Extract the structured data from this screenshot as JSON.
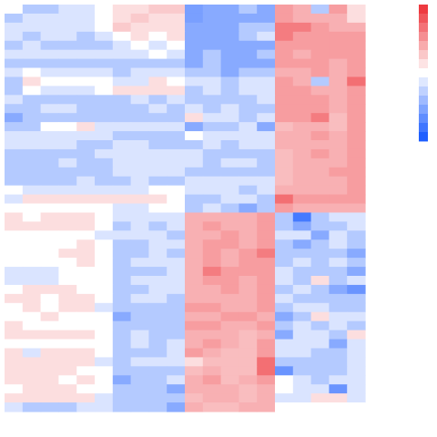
{
  "chart_data": {
    "type": "heatmap",
    "title": "",
    "xlabel": "",
    "ylabel": "",
    "legend": {
      "position": "right",
      "labels": []
    },
    "color_scale": {
      "min": -3,
      "max": 3,
      "negative": "#1f5fff",
      "neutral": "#ffffff",
      "positive": "#ee3a40",
      "steps": 15
    },
    "columns": 20,
    "row_count": 45,
    "rows": [
      [
        0.0,
        -1.0,
        -1.0,
        -0.5,
        -0.5,
        0.0,
        0.5,
        0.5,
        0.8,
        0.8,
        -1.8,
        -1.6,
        -1.6,
        -1.0,
        -1.6,
        1.5,
        1.2,
        -1.0,
        1.5,
        0.5
      ],
      [
        -1.0,
        -0.5,
        -0.5,
        -0.5,
        -0.5,
        0.0,
        0.5,
        0.8,
        0.5,
        0.5,
        -1.8,
        -1.6,
        -1.6,
        -1.6,
        -1.6,
        1.5,
        1.2,
        1.2,
        1.2,
        0.5
      ],
      [
        -0.5,
        -0.5,
        -0.5,
        -0.5,
        -0.5,
        0.0,
        0.8,
        0.5,
        0.5,
        0.5,
        -1.6,
        -1.6,
        -1.6,
        -1.0,
        -1.0,
        2.0,
        2.0,
        1.5,
        1.2,
        1.2
      ],
      [
        -0.5,
        -1.0,
        -0.5,
        -0.5,
        -1.0,
        -0.5,
        0.0,
        0.5,
        0.0,
        0.5,
        -1.6,
        -1.6,
        -1.6,
        -1.0,
        -0.5,
        2.0,
        1.5,
        1.5,
        1.5,
        1.5
      ],
      [
        -1.0,
        -0.5,
        -1.0,
        -1.0,
        -1.0,
        -1.0,
        -0.5,
        0.0,
        -0.5,
        0.0,
        -1.6,
        -1.6,
        -1.6,
        -1.6,
        -1.6,
        1.5,
        1.5,
        1.5,
        1.5,
        1.5
      ],
      [
        -0.5,
        -0.5,
        -0.5,
        -0.5,
        -0.5,
        -0.5,
        -0.5,
        -0.5,
        0.0,
        -0.5,
        -1.6,
        -1.0,
        -1.6,
        -1.6,
        -1.0,
        1.5,
        1.2,
        1.5,
        1.5,
        1.5
      ],
      [
        -1.0,
        -1.0,
        -1.0,
        -1.0,
        -1.0,
        -1.0,
        -1.0,
        -1.0,
        -1.0,
        -1.0,
        -1.6,
        -1.0,
        -1.6,
        -1.6,
        -1.6,
        1.5,
        1.5,
        1.5,
        1.2,
        1.5
      ],
      [
        -0.5,
        0.0,
        -0.5,
        -0.5,
        -0.5,
        -0.5,
        -1.0,
        -0.5,
        -0.5,
        -0.5,
        -1.0,
        -1.0,
        -1.6,
        -1.0,
        -1.0,
        1.2,
        1.2,
        1.5,
        1.2,
        1.5
      ],
      [
        -1.0,
        0.5,
        0.0,
        0.0,
        0.0,
        0.0,
        -0.5,
        -0.5,
        0.5,
        0.0,
        -0.5,
        -0.5,
        -1.0,
        -0.5,
        -0.5,
        1.5,
        1.2,
        -1.0,
        1.2,
        2.2
      ],
      [
        -1.0,
        0.0,
        -0.5,
        -0.5,
        -0.5,
        0.0,
        0.5,
        0.5,
        0.5,
        0.5,
        -1.0,
        -0.5,
        -1.0,
        -0.5,
        -0.5,
        1.5,
        1.5,
        1.2,
        1.2,
        1.5
      ],
      [
        -0.5,
        -1.0,
        -1.0,
        -1.0,
        -1.0,
        -1.0,
        -1.0,
        -0.5,
        -1.0,
        -0.5,
        -1.0,
        -1.0,
        -1.0,
        -1.0,
        -0.5,
        1.5,
        1.5,
        1.5,
        1.2,
        1.5
      ],
      [
        -1.0,
        -1.0,
        -0.5,
        -0.5,
        -1.0,
        -1.0,
        -1.0,
        -1.0,
        -0.5,
        -1.0,
        -0.5,
        -1.0,
        -0.5,
        -1.0,
        -1.0,
        1.5,
        1.5,
        1.5,
        1.2,
        1.5
      ],
      [
        -1.6,
        -1.0,
        -1.0,
        -1.0,
        -1.0,
        -1.0,
        -1.0,
        -1.0,
        -1.0,
        -1.0,
        0.5,
        -0.5,
        -0.5,
        -1.0,
        -0.5,
        1.5,
        1.5,
        2.0,
        1.0,
        1.5
      ],
      [
        -1.0,
        -1.0,
        0.0,
        0.0,
        0.5,
        -0.5,
        -0.5,
        -0.5,
        -0.5,
        -0.5,
        -1.6,
        -1.0,
        -1.0,
        -0.5,
        -1.6,
        1.0,
        1.2,
        1.2,
        1.0,
        1.5
      ],
      [
        -0.5,
        -0.5,
        -0.5,
        -0.5,
        -0.5,
        -0.5,
        -1.0,
        -1.0,
        -1.0,
        -1.0,
        0.0,
        -0.5,
        -0.5,
        -0.5,
        -0.5,
        1.2,
        1.2,
        1.5,
        1.2,
        1.5
      ],
      [
        -0.5,
        -0.5,
        -0.5,
        -0.5,
        -1.0,
        -1.0,
        -0.5,
        -0.5,
        -1.0,
        -1.0,
        -1.0,
        -0.5,
        -1.0,
        -0.5,
        -0.5,
        1.2,
        1.2,
        1.2,
        1.2,
        1.5
      ],
      [
        -1.0,
        -1.0,
        -1.0,
        -1.0,
        -1.0,
        -0.5,
        -0.5,
        -0.5,
        -0.5,
        -0.5,
        -0.5,
        -1.0,
        -1.0,
        -1.0,
        -1.0,
        1.0,
        1.2,
        1.5,
        1.2,
        1.5
      ],
      [
        -1.0,
        -1.0,
        -1.0,
        -0.5,
        -1.0,
        -1.0,
        -0.5,
        -0.5,
        -0.5,
        -0.5,
        -0.5,
        -1.0,
        -0.5,
        -0.5,
        -1.0,
        1.0,
        1.2,
        1.2,
        1.2,
        1.5
      ],
      [
        -1.0,
        -1.0,
        -1.0,
        -1.0,
        -1.0,
        -1.0,
        -0.5,
        -0.5,
        -0.5,
        -0.5,
        -1.0,
        -1.0,
        -1.0,
        -1.0,
        -1.0,
        1.0,
        1.2,
        1.2,
        1.5,
        1.5
      ],
      [
        -1.0,
        -1.0,
        -1.0,
        -1.0,
        -0.5,
        -1.0,
        -1.0,
        -0.5,
        -1.0,
        -1.0,
        -0.5,
        -0.5,
        -0.5,
        -0.5,
        -0.5,
        1.0,
        1.2,
        1.2,
        1.2,
        1.5
      ],
      [
        0.0,
        -0.5,
        -0.5,
        -0.5,
        -0.5,
        -0.5,
        -0.5,
        -0.5,
        0.0,
        0.0,
        -0.5,
        -0.5,
        -0.5,
        -1.0,
        -0.5,
        1.2,
        1.2,
        1.2,
        1.2,
        1.5
      ],
      [
        -0.5,
        0.5,
        0.5,
        0.5,
        0.5,
        0.5,
        0.5,
        0.5,
        0.5,
        0.0,
        -1.0,
        -1.0,
        -0.5,
        -0.5,
        -1.0,
        2.2,
        1.5,
        1.5,
        1.5,
        1.5
      ],
      [
        0.0,
        0.0,
        0.0,
        0.0,
        0.0,
        0.0,
        -0.5,
        -0.5,
        0.0,
        0.0,
        -1.0,
        -0.5,
        -1.0,
        -1.6,
        -1.0,
        1.5,
        1.2,
        1.2,
        1.2,
        1.2
      ],
      [
        0.5,
        0.0,
        0.5,
        0.5,
        0.5,
        0.0,
        -0.5,
        -0.5,
        -0.5,
        -0.5,
        1.2,
        1.2,
        1.2,
        1.2,
        1.5,
        -1.0,
        -2.5,
        -1.0,
        -0.5,
        -0.5
      ],
      [
        0.5,
        0.5,
        0.5,
        0.5,
        0.5,
        0.0,
        -1.0,
        -0.5,
        -1.0,
        -0.5,
        1.2,
        1.5,
        1.2,
        1.2,
        1.5,
        -1.0,
        -1.6,
        -1.0,
        -1.0,
        -0.5
      ],
      [
        0.0,
        0.0,
        0.0,
        0.0,
        0.0,
        -0.5,
        -0.5,
        -0.5,
        -0.5,
        -1.0,
        1.2,
        1.2,
        1.5,
        1.2,
        1.5,
        -0.5,
        -0.5,
        -1.6,
        -0.5,
        -1.0
      ],
      [
        0.0,
        0.0,
        0.0,
        0.0,
        0.5,
        0.0,
        -1.0,
        -1.0,
        -0.5,
        -0.5,
        1.2,
        1.5,
        1.5,
        1.2,
        1.5,
        -1.0,
        -1.6,
        -1.0,
        -0.5,
        -1.0
      ],
      [
        0.0,
        0.0,
        0.0,
        0.5,
        0.5,
        0.0,
        -1.0,
        -1.0,
        -0.5,
        -1.0,
        1.2,
        1.5,
        1.2,
        1.5,
        2.0,
        -1.0,
        -1.0,
        -1.0,
        -1.0,
        -1.6
      ],
      [
        0.0,
        0.0,
        0.0,
        0.0,
        0.5,
        0.0,
        -1.0,
        -0.5,
        -0.5,
        -0.5,
        1.2,
        1.5,
        1.2,
        1.5,
        1.5,
        -1.0,
        -0.5,
        -1.0,
        -0.5,
        -1.0
      ],
      [
        -0.5,
        -0.5,
        -0.5,
        0.0,
        0.0,
        0.0,
        -1.0,
        -1.0,
        -1.0,
        -0.5,
        1.2,
        2.0,
        1.5,
        1.5,
        1.5,
        -0.5,
        -1.0,
        -1.0,
        -1.0,
        -1.6
      ],
      [
        -0.5,
        -0.5,
        -0.5,
        0.0,
        0.0,
        0.0,
        -1.0,
        -0.5,
        -0.5,
        -0.5,
        1.2,
        1.5,
        1.5,
        1.2,
        1.5,
        -0.5,
        -1.0,
        0.5,
        -1.0,
        -0.5
      ],
      [
        0.0,
        0.5,
        0.5,
        0.5,
        0.0,
        0.0,
        -1.0,
        -1.0,
        -0.5,
        -0.5,
        1.2,
        1.2,
        1.5,
        1.2,
        1.5,
        -1.0,
        -0.5,
        -1.0,
        -1.6,
        -2.0
      ],
      [
        0.5,
        0.5,
        0.0,
        0.5,
        0.5,
        0.0,
        -1.0,
        -0.5,
        -0.5,
        -1.0,
        1.2,
        1.2,
        1.2,
        1.2,
        1.5,
        -0.5,
        -1.0,
        -1.0,
        -1.0,
        -1.0
      ],
      [
        0.0,
        0.5,
        0.0,
        0.5,
        0.5,
        -0.5,
        -1.0,
        -1.0,
        -1.0,
        -1.0,
        1.5,
        1.5,
        1.2,
        1.2,
        1.5,
        -1.0,
        -0.5,
        -0.5,
        -1.0,
        -1.0
      ],
      [
        0.0,
        0.0,
        0.5,
        0.0,
        0.0,
        0.0,
        -1.6,
        -1.0,
        -1.0,
        -1.0,
        1.2,
        1.2,
        1.5,
        1.5,
        1.2,
        -1.6,
        -1.0,
        0.5,
        -0.5,
        -0.5
      ],
      [
        0.5,
        0.0,
        0.0,
        0.0,
        0.0,
        0.0,
        -1.0,
        -1.0,
        -1.0,
        -1.0,
        1.5,
        1.5,
        1.2,
        1.2,
        1.5,
        -1.0,
        -0.5,
        -1.0,
        -0.5,
        -1.0
      ],
      [
        0.5,
        0.5,
        0.5,
        0.5,
        0.5,
        0.0,
        -1.0,
        -0.5,
        -1.0,
        -1.0,
        1.2,
        1.2,
        1.2,
        1.0,
        1.2,
        -1.6,
        -0.5,
        -0.5,
        -1.0,
        0.5
      ],
      [
        0.0,
        0.0,
        0.0,
        0.0,
        0.0,
        0.0,
        -1.0,
        -0.5,
        -1.0,
        -0.5,
        1.2,
        1.5,
        1.2,
        1.0,
        1.5,
        -0.5,
        -0.5,
        -0.5,
        -1.6,
        -0.5
      ],
      [
        0.5,
        -0.5,
        0.5,
        0.5,
        0.5,
        0.0,
        -1.0,
        -1.0,
        -1.0,
        -0.5,
        1.5,
        1.2,
        1.0,
        1.0,
        1.5,
        -0.5,
        -0.5,
        -1.0,
        -1.0,
        -0.5
      ],
      [
        0.5,
        0.5,
        0.5,
        0.5,
        0.5,
        -0.5,
        -1.0,
        -0.5,
        -0.5,
        -0.5,
        0.5,
        1.0,
        1.0,
        1.0,
        2.2,
        -1.0,
        -1.0,
        -1.0,
        -1.0,
        -0.5
      ],
      [
        0.5,
        0.5,
        0.5,
        0.5,
        0.0,
        0.0,
        -1.0,
        -1.0,
        -1.0,
        -1.0,
        1.0,
        1.2,
        1.0,
        1.0,
        2.2,
        -2.0,
        -1.0,
        -1.0,
        -1.0,
        -0.5
      ],
      [
        0.5,
        0.5,
        0.5,
        0.0,
        0.5,
        0.0,
        -1.6,
        -1.0,
        -1.0,
        -0.5,
        1.2,
        1.5,
        1.0,
        1.2,
        1.5,
        0.0,
        -0.5,
        -1.0,
        -0.5,
        -0.5
      ],
      [
        0.0,
        0.5,
        0.5,
        0.5,
        0.0,
        0.0,
        -1.0,
        -1.0,
        -1.0,
        -1.6,
        1.2,
        1.2,
        1.2,
        1.0,
        1.2,
        0.0,
        -0.5,
        -0.5,
        -2.0,
        -0.5
      ],
      [
        0.5,
        0.5,
        0.5,
        0.5,
        0.5,
        -0.5,
        -1.0,
        -1.0,
        -1.0,
        -1.0,
        1.0,
        1.2,
        1.2,
        1.0,
        1.2,
        -0.5,
        -0.5,
        0.5,
        0.5,
        -0.5
      ],
      [
        -0.5,
        -1.0,
        -1.0,
        -1.0,
        -0.5,
        -0.5,
        -1.0,
        -1.0,
        -1.0,
        -1.6,
        1.2,
        1.0,
        1.0,
        1.2,
        1.2,
        0.0,
        0.0,
        0.0,
        0.0,
        0.0
      ]
    ]
  }
}
